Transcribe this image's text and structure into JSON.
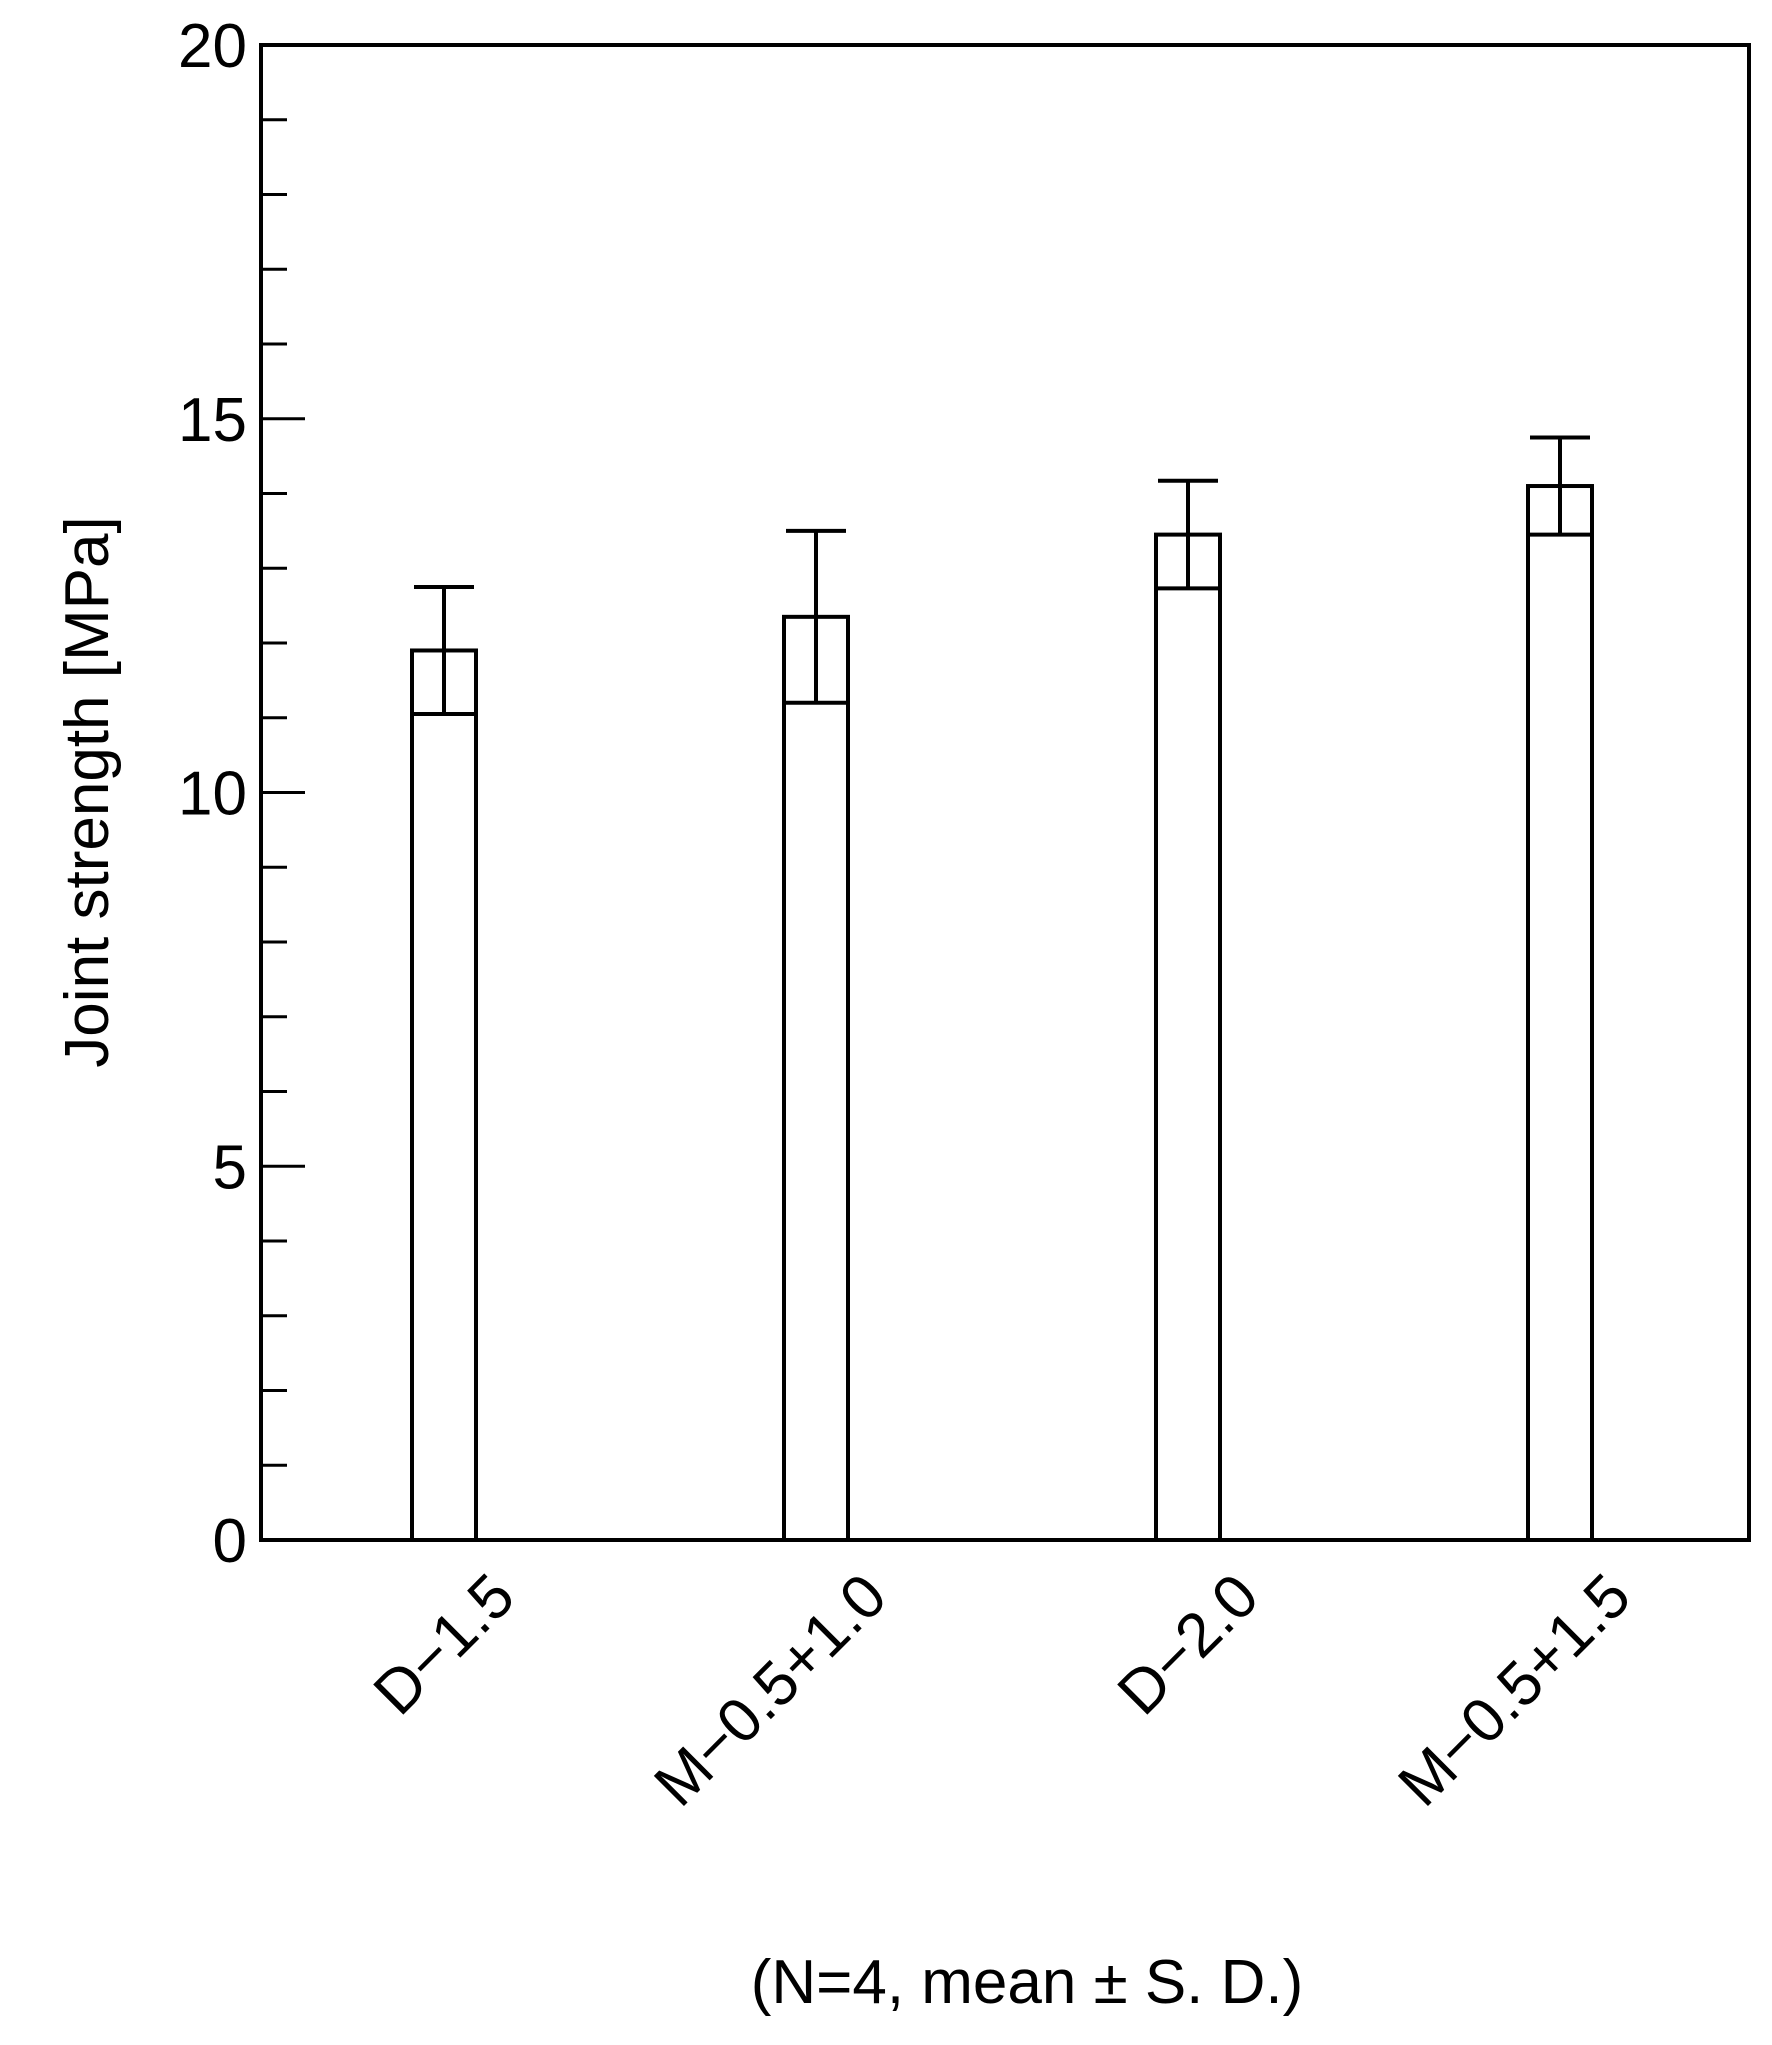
{
  "chart_data": {
    "type": "bar",
    "categories": [
      "D−1.5",
      "M−0.5+1.0",
      "D−2.0",
      "M−0.5+1.5"
    ],
    "values": [
      11.9,
      12.35,
      13.45,
      14.1
    ],
    "errors": [
      0.85,
      1.15,
      0.72,
      0.65
    ],
    "ylabel": "Joint strength [MPa]",
    "xlabel": "",
    "title": "",
    "note": "(N=4, mean ± S. D.)",
    "ylim": [
      0,
      20
    ],
    "yticks_major": [
      0,
      5,
      10,
      15,
      20
    ],
    "yticks_major_labels": [
      "0",
      "5",
      "10",
      "15",
      "20"
    ],
    "yticks_minor_step": 1,
    "grid": false,
    "bar_fill": "#ffffff",
    "bar_stroke": "#000000"
  }
}
